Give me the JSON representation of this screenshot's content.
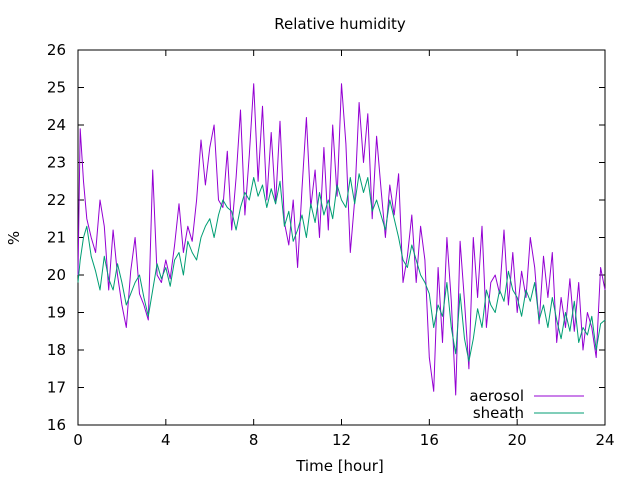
{
  "chart_data": {
    "type": "line",
    "title": "Relative humidity",
    "xlabel": "Time [hour]",
    "ylabel": "%",
    "xlim": [
      0,
      24
    ],
    "ylim": [
      16,
      26
    ],
    "xticks": [
      0,
      4,
      8,
      12,
      16,
      20,
      24
    ],
    "yticks": [
      16,
      17,
      18,
      19,
      20,
      21,
      22,
      23,
      24,
      25,
      26
    ],
    "grid": false,
    "legend_position": "bottom-right",
    "series": [
      {
        "name": "aerosol",
        "color": "#9400d3",
        "x": [
          0,
          0.1,
          0.25,
          0.4,
          0.6,
          0.8,
          1.0,
          1.2,
          1.4,
          1.6,
          1.8,
          2.0,
          2.2,
          2.4,
          2.6,
          2.8,
          3.0,
          3.2,
          3.4,
          3.6,
          3.8,
          4.0,
          4.2,
          4.4,
          4.6,
          4.8,
          5.0,
          5.2,
          5.4,
          5.6,
          5.8,
          6.0,
          6.2,
          6.4,
          6.6,
          6.8,
          7.0,
          7.2,
          7.4,
          7.6,
          7.8,
          8.0,
          8.2,
          8.4,
          8.6,
          8.8,
          9.0,
          9.2,
          9.4,
          9.6,
          9.8,
          10.0,
          10.2,
          10.4,
          10.6,
          10.8,
          11.0,
          11.2,
          11.4,
          11.6,
          11.8,
          12.0,
          12.2,
          12.4,
          12.6,
          12.8,
          13.0,
          13.2,
          13.4,
          13.6,
          13.8,
          14.0,
          14.2,
          14.4,
          14.6,
          14.8,
          15.0,
          15.2,
          15.4,
          15.6,
          15.8,
          16.0,
          16.2,
          16.4,
          16.6,
          16.8,
          17.0,
          17.2,
          17.4,
          17.6,
          17.8,
          18.0,
          18.2,
          18.4,
          18.6,
          18.8,
          19.0,
          19.2,
          19.4,
          19.6,
          19.8,
          20.0,
          20.2,
          20.4,
          20.6,
          20.8,
          21.0,
          21.2,
          21.4,
          21.6,
          21.8,
          22.0,
          22.2,
          22.4,
          22.6,
          22.8,
          23.0,
          23.2,
          23.4,
          23.6,
          23.8,
          24.0
        ],
        "values": [
          20.0,
          23.9,
          22.5,
          21.5,
          21.0,
          20.6,
          22.0,
          21.3,
          19.6,
          21.2,
          20.0,
          19.2,
          18.6,
          20.1,
          21.0,
          19.5,
          19.2,
          18.8,
          22.8,
          20.0,
          19.8,
          20.4,
          19.9,
          20.8,
          21.9,
          20.6,
          21.3,
          20.9,
          22.0,
          23.6,
          22.4,
          23.4,
          24.0,
          22.0,
          21.8,
          23.3,
          21.2,
          22.6,
          24.4,
          21.6,
          23.2,
          25.1,
          22.5,
          24.5,
          22.0,
          23.8,
          21.9,
          24.1,
          21.4,
          20.8,
          22.0,
          20.2,
          22.3,
          24.2,
          21.8,
          22.8,
          21.0,
          23.4,
          21.2,
          24.0,
          22.1,
          25.1,
          23.5,
          20.6,
          22.0,
          24.6,
          23.0,
          24.3,
          21.5,
          23.7,
          22.3,
          21.0,
          22.4,
          21.6,
          22.7,
          19.8,
          20.5,
          21.6,
          19.8,
          21.3,
          20.4,
          17.8,
          16.9,
          20.2,
          18.2,
          21.0,
          19.3,
          16.8,
          20.9,
          19.3,
          17.5,
          21.0,
          19.4,
          21.3,
          18.6,
          19.8,
          20.0,
          19.5,
          21.2,
          19.2,
          20.6,
          19.0,
          20.1,
          19.4,
          21.0,
          20.2,
          18.7,
          20.5,
          19.4,
          20.6,
          18.2,
          19.4,
          18.6,
          19.9,
          18.5,
          19.8,
          18.0,
          19.0,
          18.6,
          17.8,
          20.2,
          19.6
        ]
      },
      {
        "name": "sheath",
        "color": "#009e73",
        "x": [
          0,
          0.1,
          0.25,
          0.4,
          0.6,
          0.8,
          1.0,
          1.2,
          1.4,
          1.6,
          1.8,
          2.0,
          2.2,
          2.4,
          2.6,
          2.8,
          3.0,
          3.2,
          3.4,
          3.6,
          3.8,
          4.0,
          4.2,
          4.4,
          4.6,
          4.8,
          5.0,
          5.2,
          5.4,
          5.6,
          5.8,
          6.0,
          6.2,
          6.4,
          6.6,
          6.8,
          7.0,
          7.2,
          7.4,
          7.6,
          7.8,
          8.0,
          8.2,
          8.4,
          8.6,
          8.8,
          9.0,
          9.2,
          9.4,
          9.6,
          9.8,
          10.0,
          10.2,
          10.4,
          10.6,
          10.8,
          11.0,
          11.2,
          11.4,
          11.6,
          11.8,
          12.0,
          12.2,
          12.4,
          12.6,
          12.8,
          13.0,
          13.2,
          13.4,
          13.6,
          13.8,
          14.0,
          14.2,
          14.4,
          14.6,
          14.8,
          15.0,
          15.2,
          15.4,
          15.6,
          15.8,
          16.0,
          16.2,
          16.4,
          16.6,
          16.8,
          17.0,
          17.2,
          17.4,
          17.6,
          17.8,
          18.0,
          18.2,
          18.4,
          18.6,
          18.8,
          19.0,
          19.2,
          19.4,
          19.6,
          19.8,
          20.0,
          20.2,
          20.4,
          20.6,
          20.8,
          21.0,
          21.2,
          21.4,
          21.6,
          21.8,
          22.0,
          22.2,
          22.4,
          22.6,
          22.8,
          23.0,
          23.2,
          23.4,
          23.6,
          23.8,
          24.0
        ],
        "values": [
          19.8,
          20.4,
          21.0,
          21.3,
          20.5,
          20.1,
          19.6,
          20.5,
          19.9,
          19.6,
          20.3,
          19.8,
          19.2,
          19.5,
          19.8,
          20.0,
          19.4,
          18.9,
          19.6,
          20.3,
          19.9,
          20.2,
          19.7,
          20.4,
          20.6,
          20.0,
          20.9,
          20.6,
          20.4,
          21.0,
          21.3,
          21.5,
          21.0,
          21.6,
          22.0,
          21.8,
          21.7,
          21.2,
          21.8,
          22.2,
          22.0,
          22.6,
          22.1,
          22.4,
          21.8,
          22.3,
          21.9,
          22.5,
          21.3,
          21.7,
          20.9,
          21.2,
          21.6,
          21.0,
          21.9,
          21.4,
          22.2,
          21.6,
          22.0,
          21.5,
          22.4,
          22.0,
          21.8,
          22.6,
          21.9,
          22.7,
          22.2,
          22.6,
          21.7,
          22.0,
          21.6,
          21.2,
          22.0,
          21.5,
          21.0,
          20.4,
          20.2,
          20.8,
          20.4,
          20.0,
          19.8,
          19.5,
          18.6,
          19.2,
          18.9,
          19.8,
          18.6,
          17.9,
          19.5,
          18.3,
          17.7,
          18.3,
          19.1,
          18.6,
          19.6,
          19.2,
          19.0,
          19.6,
          19.3,
          20.1,
          19.6,
          19.4,
          18.9,
          19.6,
          19.3,
          19.8,
          18.8,
          19.2,
          18.6,
          19.4,
          18.8,
          18.3,
          19.0,
          18.5,
          19.3,
          18.2,
          18.6,
          18.4,
          18.9,
          18.0,
          18.7,
          18.8
        ]
      }
    ]
  }
}
